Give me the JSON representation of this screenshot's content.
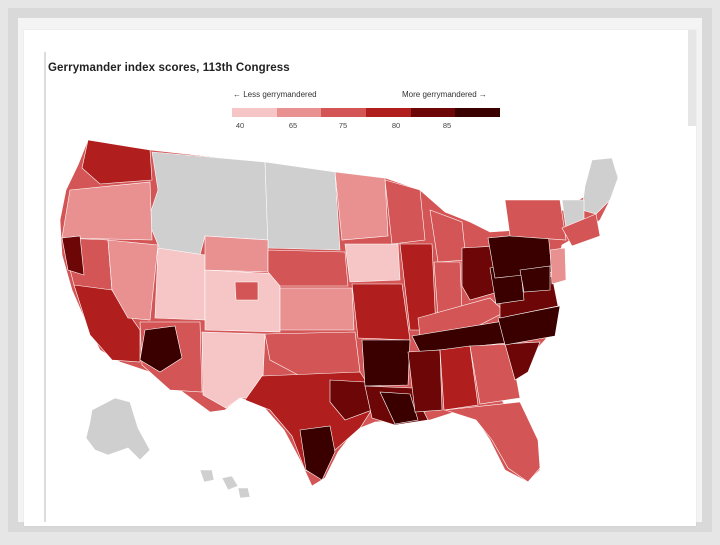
{
  "title": "Gerrymander index scores, 113th Congress",
  "legend": {
    "left_label": "← Less gerrymandered",
    "right_label": "More gerrymandered →",
    "ticks": [
      "40",
      "65",
      "75",
      "80",
      "85"
    ],
    "colors": [
      "#f6c6c6",
      "#e99191",
      "#d45555",
      "#b01e1e",
      "#6d0707",
      "#3a0000"
    ]
  },
  "colors": {
    "no_data": "#cfcfcf",
    "very_low": "#f6c6c6",
    "low": "#e99191",
    "mid": "#d45555",
    "high": "#b01e1e",
    "very_high": "#6d0707",
    "extreme": "#3a0000"
  }
}
